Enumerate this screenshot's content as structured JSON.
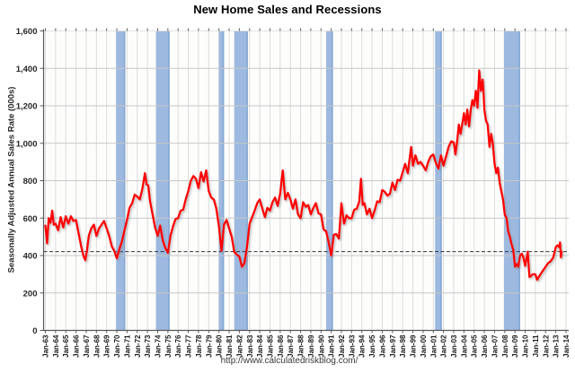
{
  "chart_data": {
    "type": "line",
    "title": "New Home Sales and Recessions",
    "ylabel": "Seasonally Adjusted Annual Sales Rate (000s)",
    "xlabel": "",
    "footer_url": "http://www.calculatedriskblog.com/",
    "xlim": [
      1962.85,
      2014.3
    ],
    "ylim": [
      0,
      1600
    ],
    "grid": true,
    "legend": "none",
    "x_ticks": {
      "start_year": 1963,
      "interval_years": 1,
      "labels": [
        "Jan-63",
        "Jan-64",
        "Jan-65",
        "Jan-66",
        "Jan-67",
        "Jan-68",
        "Jan-69",
        "Jan-70",
        "Jan-71",
        "Jan-72",
        "Jan-73",
        "Jan-74",
        "Jan-75",
        "Jan-76",
        "Jan-77",
        "Jan-78",
        "Jan-79",
        "Jan-80",
        "Jan-81",
        "Jan-82",
        "Jan-83",
        "Jan-84",
        "Jan-85",
        "Jan-86",
        "Jan-87",
        "Jan-88",
        "Jan-89",
        "Jan-90",
        "Jan-91",
        "Jan-92",
        "Jan-93",
        "Jan-94",
        "Jan-95",
        "Jan-96",
        "Jan-97",
        "Jan-98",
        "Jan-99",
        "Jan-00",
        "Jan-01",
        "Jan-02",
        "Jan-03",
        "Jan-04",
        "Jan-05",
        "Jan-06",
        "Jan-07",
        "Jan-08",
        "Jan-09",
        "Jan-10",
        "Jan-11",
        "Jan-12",
        "Jan-13",
        "Jan-14"
      ]
    },
    "y_ticks": {
      "values": [
        0,
        200,
        400,
        600,
        800,
        1000,
        1200,
        1400,
        1600
      ],
      "labels": [
        "0",
        "200",
        "400",
        "600",
        "800",
        "1,000",
        "1,200",
        "1,400",
        "1,600"
      ]
    },
    "reference_line": {
      "value": 421,
      "style": "dashed",
      "color": "#333333"
    },
    "recession_bands": [
      {
        "start": 1969.92,
        "end": 1970.83
      },
      {
        "start": 1973.83,
        "end": 1975.17
      },
      {
        "start": 1980.0,
        "end": 1980.5
      },
      {
        "start": 1981.5,
        "end": 1982.83
      },
      {
        "start": 1990.5,
        "end": 1991.17
      },
      {
        "start": 2001.17,
        "end": 2001.83
      },
      {
        "start": 2007.92,
        "end": 2009.5
      }
    ],
    "series": [
      {
        "name": "New Home Sales",
        "color": "#fe0000",
        "points": [
          [
            1963.0,
            560
          ],
          [
            1963.17,
            465
          ],
          [
            1963.33,
            600
          ],
          [
            1963.5,
            575
          ],
          [
            1963.67,
            640
          ],
          [
            1963.83,
            565
          ],
          [
            1964.0,
            570
          ],
          [
            1964.25,
            535
          ],
          [
            1964.5,
            605
          ],
          [
            1964.75,
            550
          ],
          [
            1965.0,
            610
          ],
          [
            1965.25,
            570
          ],
          [
            1965.5,
            610
          ],
          [
            1965.75,
            585
          ],
          [
            1966.0,
            590
          ],
          [
            1966.25,
            520
          ],
          [
            1966.5,
            450
          ],
          [
            1966.75,
            395
          ],
          [
            1966.92,
            375
          ],
          [
            1967.08,
            430
          ],
          [
            1967.25,
            505
          ],
          [
            1967.5,
            545
          ],
          [
            1967.75,
            565
          ],
          [
            1968.0,
            505
          ],
          [
            1968.25,
            545
          ],
          [
            1968.5,
            565
          ],
          [
            1968.75,
            585
          ],
          [
            1969.0,
            545
          ],
          [
            1969.25,
            505
          ],
          [
            1969.5,
            450
          ],
          [
            1969.75,
            425
          ],
          [
            1970.0,
            385
          ],
          [
            1970.25,
            435
          ],
          [
            1970.5,
            475
          ],
          [
            1970.75,
            535
          ],
          [
            1971.0,
            590
          ],
          [
            1971.25,
            655
          ],
          [
            1971.5,
            680
          ],
          [
            1971.75,
            725
          ],
          [
            1972.0,
            715
          ],
          [
            1972.25,
            700
          ],
          [
            1972.5,
            755
          ],
          [
            1972.75,
            840
          ],
          [
            1972.92,
            780
          ],
          [
            1973.08,
            775
          ],
          [
            1973.25,
            690
          ],
          [
            1973.5,
            620
          ],
          [
            1973.75,
            550
          ],
          [
            1974.0,
            505
          ],
          [
            1974.25,
            560
          ],
          [
            1974.5,
            480
          ],
          [
            1974.75,
            440
          ],
          [
            1975.0,
            415
          ],
          [
            1975.25,
            505
          ],
          [
            1975.5,
            555
          ],
          [
            1975.75,
            595
          ],
          [
            1976.0,
            600
          ],
          [
            1976.25,
            640
          ],
          [
            1976.5,
            645
          ],
          [
            1976.75,
            700
          ],
          [
            1977.0,
            745
          ],
          [
            1977.25,
            800
          ],
          [
            1977.5,
            825
          ],
          [
            1977.75,
            810
          ],
          [
            1978.0,
            760
          ],
          [
            1978.25,
            845
          ],
          [
            1978.5,
            795
          ],
          [
            1978.75,
            855
          ],
          [
            1979.0,
            745
          ],
          [
            1979.25,
            710
          ],
          [
            1979.5,
            700
          ],
          [
            1979.75,
            650
          ],
          [
            1980.0,
            555
          ],
          [
            1980.25,
            425
          ],
          [
            1980.5,
            565
          ],
          [
            1980.75,
            590
          ],
          [
            1981.0,
            545
          ],
          [
            1981.25,
            500
          ],
          [
            1981.5,
            420
          ],
          [
            1981.75,
            405
          ],
          [
            1982.0,
            395
          ],
          [
            1982.25,
            340
          ],
          [
            1982.5,
            360
          ],
          [
            1982.75,
            445
          ],
          [
            1983.0,
            570
          ],
          [
            1983.25,
            605
          ],
          [
            1983.5,
            640
          ],
          [
            1983.75,
            680
          ],
          [
            1984.0,
            700
          ],
          [
            1984.25,
            650
          ],
          [
            1984.5,
            605
          ],
          [
            1984.75,
            655
          ],
          [
            1985.0,
            640
          ],
          [
            1985.25,
            685
          ],
          [
            1985.5,
            710
          ],
          [
            1985.75,
            665
          ],
          [
            1986.0,
            730
          ],
          [
            1986.25,
            855
          ],
          [
            1986.5,
            700
          ],
          [
            1986.75,
            735
          ],
          [
            1987.0,
            700
          ],
          [
            1987.25,
            650
          ],
          [
            1987.5,
            700
          ],
          [
            1987.75,
            620
          ],
          [
            1988.0,
            600
          ],
          [
            1988.25,
            685
          ],
          [
            1988.5,
            660
          ],
          [
            1988.75,
            670
          ],
          [
            1989.0,
            620
          ],
          [
            1989.25,
            655
          ],
          [
            1989.5,
            680
          ],
          [
            1989.75,
            625
          ],
          [
            1990.0,
            620
          ],
          [
            1990.25,
            540
          ],
          [
            1990.5,
            530
          ],
          [
            1990.75,
            470
          ],
          [
            1991.0,
            400
          ],
          [
            1991.25,
            510
          ],
          [
            1991.5,
            515
          ],
          [
            1991.75,
            490
          ],
          [
            1992.0,
            680
          ],
          [
            1992.25,
            570
          ],
          [
            1992.5,
            615
          ],
          [
            1992.75,
            600
          ],
          [
            1993.0,
            600
          ],
          [
            1993.25,
            645
          ],
          [
            1993.5,
            650
          ],
          [
            1993.75,
            690
          ],
          [
            1993.92,
            810
          ],
          [
            1994.08,
            670
          ],
          [
            1994.25,
            680
          ],
          [
            1994.5,
            620
          ],
          [
            1994.75,
            650
          ],
          [
            1995.0,
            600
          ],
          [
            1995.25,
            640
          ],
          [
            1995.5,
            690
          ],
          [
            1995.75,
            685
          ],
          [
            1996.0,
            750
          ],
          [
            1996.25,
            740
          ],
          [
            1996.5,
            720
          ],
          [
            1996.75,
            730
          ],
          [
            1997.0,
            790
          ],
          [
            1997.25,
            750
          ],
          [
            1997.5,
            805
          ],
          [
            1997.75,
            800
          ],
          [
            1998.0,
            845
          ],
          [
            1998.25,
            890
          ],
          [
            1998.5,
            840
          ],
          [
            1998.83,
            980
          ],
          [
            1999.0,
            880
          ],
          [
            1999.25,
            935
          ],
          [
            1999.5,
            890
          ],
          [
            1999.75,
            900
          ],
          [
            2000.0,
            880
          ],
          [
            2000.25,
            855
          ],
          [
            2000.5,
            900
          ],
          [
            2000.75,
            930
          ],
          [
            2001.0,
            940
          ],
          [
            2001.25,
            895
          ],
          [
            2001.5,
            865
          ],
          [
            2001.75,
            935
          ],
          [
            2002.0,
            880
          ],
          [
            2002.25,
            930
          ],
          [
            2002.5,
            980
          ],
          [
            2002.75,
            1010
          ],
          [
            2003.0,
            1005
          ],
          [
            2003.17,
            940
          ],
          [
            2003.33,
            1010
          ],
          [
            2003.5,
            1100
          ],
          [
            2003.67,
            1050
          ],
          [
            2003.83,
            1100
          ],
          [
            2004.0,
            1160
          ],
          [
            2004.17,
            1100
          ],
          [
            2004.33,
            1180
          ],
          [
            2004.5,
            1090
          ],
          [
            2004.67,
            1180
          ],
          [
            2004.83,
            1230
          ],
          [
            2005.0,
            1200
          ],
          [
            2005.17,
            1280
          ],
          [
            2005.33,
            1190
          ],
          [
            2005.5,
            1389
          ],
          [
            2005.67,
            1280
          ],
          [
            2005.83,
            1340
          ],
          [
            2005.92,
            1270
          ],
          [
            2006.0,
            1180
          ],
          [
            2006.17,
            1120
          ],
          [
            2006.33,
            1100
          ],
          [
            2006.5,
            980
          ],
          [
            2006.67,
            1050
          ],
          [
            2006.83,
            1000
          ],
          [
            2007.0,
            890
          ],
          [
            2007.17,
            840
          ],
          [
            2007.33,
            870
          ],
          [
            2007.5,
            790
          ],
          [
            2007.67,
            740
          ],
          [
            2007.83,
            700
          ],
          [
            2008.0,
            620
          ],
          [
            2008.17,
            600
          ],
          [
            2008.33,
            530
          ],
          [
            2008.5,
            500
          ],
          [
            2008.67,
            460
          ],
          [
            2008.83,
            430
          ],
          [
            2009.0,
            340
          ],
          [
            2009.17,
            355
          ],
          [
            2009.33,
            340
          ],
          [
            2009.5,
            400
          ],
          [
            2009.67,
            410
          ],
          [
            2009.83,
            390
          ],
          [
            2010.0,
            345
          ],
          [
            2010.25,
            420
          ],
          [
            2010.42,
            285
          ],
          [
            2010.75,
            300
          ],
          [
            2011.0,
            300
          ],
          [
            2011.17,
            270
          ],
          [
            2011.5,
            300
          ],
          [
            2011.75,
            320
          ],
          [
            2012.0,
            340
          ],
          [
            2012.25,
            360
          ],
          [
            2012.5,
            370
          ],
          [
            2012.75,
            390
          ],
          [
            2013.0,
            445
          ],
          [
            2013.17,
            455
          ],
          [
            2013.33,
            445
          ],
          [
            2013.42,
            470
          ],
          [
            2013.5,
            390
          ],
          [
            2013.58,
            421
          ]
        ]
      }
    ]
  },
  "colors": {
    "line": "#fe0000",
    "recession_band": "#9db9df",
    "recession_band_edge": "#84a7d3",
    "dashed_reference": "#333333"
  }
}
